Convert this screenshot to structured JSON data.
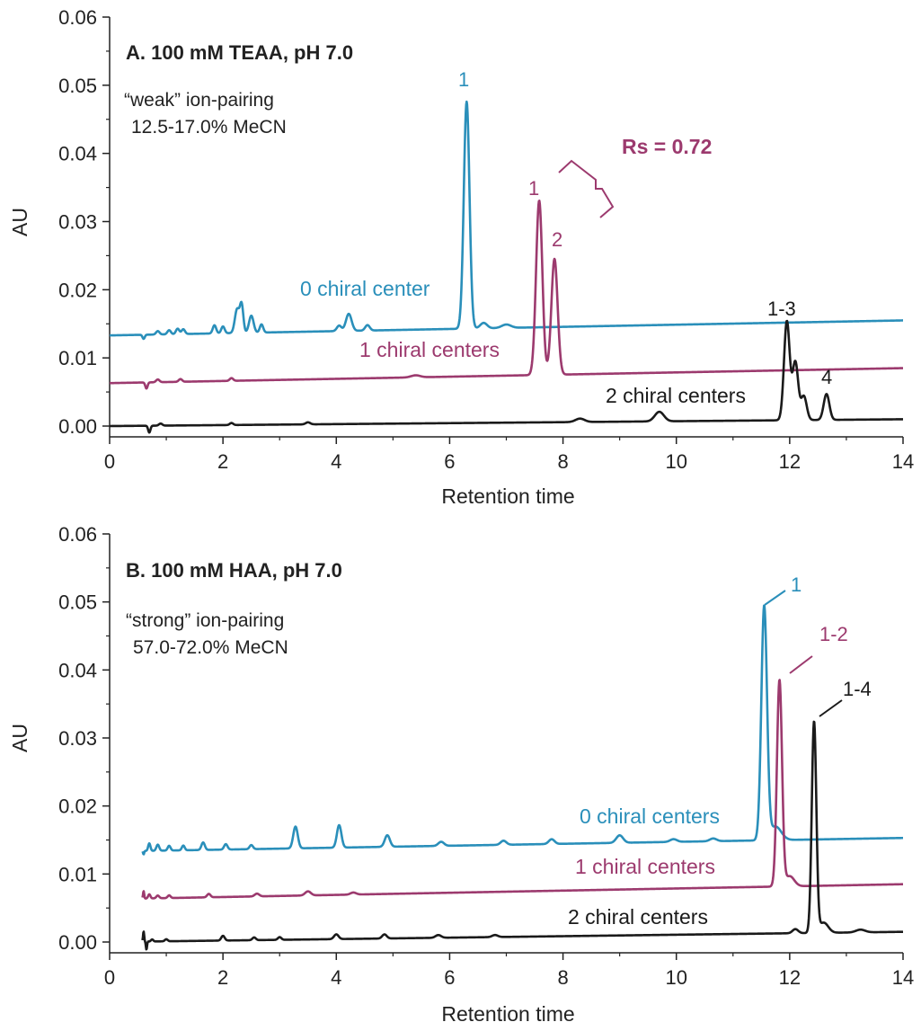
{
  "colors": {
    "blue": "#2a8fba",
    "purple": "#9c3a6e",
    "black": "#1a1a1a"
  },
  "chart_data": [
    {
      "type": "line",
      "title": "A. 100 mM TEAA, pH 7.0",
      "notes": [
        "“weak” ion-pairing",
        "12.5-17.0% MeCN"
      ],
      "xlabel": "Retention time",
      "ylabel": "AU",
      "xlim": [
        0,
        14
      ],
      "ylim": [
        0,
        0.06
      ],
      "xticks": [
        "0",
        "2",
        "4",
        "6",
        "8",
        "10",
        "12",
        "14"
      ],
      "yticks": [
        "0.00",
        "0.01",
        "0.02",
        "0.03",
        "0.04",
        "0.05",
        "0.06"
      ],
      "series": [
        {
          "name": "0 chiral center",
          "color": "blue",
          "baseline": [
            0.0133,
            0.0155
          ],
          "start": 0,
          "peaks": [
            [
              0.6,
              -0.0006,
              0.02
            ],
            [
              0.85,
              0.0005,
              0.03
            ],
            [
              1.05,
              0.0006,
              0.03
            ],
            [
              1.2,
              0.0008,
              0.03
            ],
            [
              1.3,
              0.0007,
              0.03
            ],
            [
              1.85,
              0.0012,
              0.03
            ],
            [
              2.0,
              0.001,
              0.03
            ],
            [
              2.25,
              0.0035,
              0.04
            ],
            [
              2.33,
              0.004,
              0.03
            ],
            [
              2.5,
              0.0025,
              0.04
            ],
            [
              2.68,
              0.0012,
              0.03
            ],
            [
              4.05,
              0.0008,
              0.04
            ],
            [
              4.22,
              0.0025,
              0.05
            ],
            [
              4.55,
              0.0008,
              0.04
            ],
            [
              6.3,
              0.0333,
              0.05
            ],
            [
              6.6,
              0.0008,
              0.06
            ],
            [
              7.0,
              0.0005,
              0.08
            ]
          ]
        },
        {
          "name": "1 chiral centers",
          "color": "purple",
          "baseline": [
            0.0063,
            0.0085
          ],
          "start": 0,
          "peaks": [
            [
              0.65,
              -0.0009,
              0.02
            ],
            [
              0.85,
              0.0004,
              0.03
            ],
            [
              1.25,
              0.0004,
              0.03
            ],
            [
              2.15,
              0.0004,
              0.03
            ],
            [
              5.4,
              0.0003,
              0.08
            ],
            [
              7.58,
              0.0256,
              0.055
            ],
            [
              7.85,
              0.017,
              0.055
            ]
          ]
        },
        {
          "name": "2 chiral centers",
          "color": "black",
          "baseline": [
            0.0,
            0.001
          ],
          "start": 0,
          "peaks": [
            [
              0.7,
              -0.001,
              0.02
            ],
            [
              0.9,
              0.0003,
              0.03
            ],
            [
              2.15,
              0.0003,
              0.03
            ],
            [
              3.5,
              0.0003,
              0.04
            ],
            [
              8.3,
              0.0005,
              0.08
            ],
            [
              9.7,
              0.0014,
              0.08
            ],
            [
              11.95,
              0.0145,
              0.05
            ],
            [
              12.1,
              0.0085,
              0.05
            ],
            [
              12.25,
              0.0035,
              0.05
            ],
            [
              12.65,
              0.0038,
              0.05
            ]
          ]
        }
      ],
      "annotations": {
        "peak_blue_1": "1",
        "peak_purple_1": "1",
        "peak_purple_2": "2",
        "peak_black_1_3": "1-3",
        "peak_black_4": "4",
        "resolution": "Rs = 0.72"
      }
    },
    {
      "type": "line",
      "title": "B. 100 mM HAA, pH 7.0",
      "notes": [
        "“strong” ion-pairing",
        "57.0-72.0% MeCN"
      ],
      "xlabel": "Retention time",
      "ylabel": "AU",
      "xlim": [
        0,
        14
      ],
      "ylim": [
        0,
        0.06
      ],
      "xticks": [
        "0",
        "2",
        "4",
        "6",
        "8",
        "10",
        "12",
        "14"
      ],
      "yticks": [
        "0.00",
        "0.01",
        "0.02",
        "0.03",
        "0.04",
        "0.05",
        "0.06"
      ],
      "series": [
        {
          "name": "0 chiral centers",
          "color": "blue",
          "baseline": [
            0.0133,
            0.0153
          ],
          "start": 0.58,
          "peaks": [
            [
              0.6,
              -0.0005,
              0.01
            ],
            [
              0.7,
              0.0011,
              0.02
            ],
            [
              0.85,
              0.0009,
              0.025
            ],
            [
              1.05,
              0.0007,
              0.025
            ],
            [
              1.3,
              0.0007,
              0.025
            ],
            [
              1.65,
              0.0011,
              0.03
            ],
            [
              2.05,
              0.0008,
              0.03
            ],
            [
              2.5,
              0.0006,
              0.03
            ],
            [
              3.28,
              0.0032,
              0.04
            ],
            [
              4.05,
              0.0033,
              0.04
            ],
            [
              4.9,
              0.0017,
              0.045
            ],
            [
              5.85,
              0.0006,
              0.05
            ],
            [
              6.95,
              0.0006,
              0.05
            ],
            [
              7.8,
              0.0007,
              0.05
            ],
            [
              9.0,
              0.0011,
              0.06
            ],
            [
              9.95,
              0.0004,
              0.06
            ],
            [
              10.65,
              0.0004,
              0.06
            ],
            [
              11.55,
              0.0343,
              0.05
            ],
            [
              11.75,
              0.002,
              0.1
            ]
          ]
        },
        {
          "name": "1 chiral centers",
          "color": "purple",
          "baseline": [
            0.0063,
            0.0085
          ],
          "start": 0.58,
          "peaks": [
            [
              0.6,
              0.0011,
              0.01
            ],
            [
              0.7,
              0.0006,
              0.02
            ],
            [
              0.85,
              0.0004,
              0.025
            ],
            [
              1.05,
              0.0004,
              0.025
            ],
            [
              1.75,
              0.0005,
              0.03
            ],
            [
              2.6,
              0.0004,
              0.04
            ],
            [
              3.5,
              0.0006,
              0.05
            ],
            [
              4.3,
              0.0003,
              0.05
            ],
            [
              11.82,
              0.0303,
              0.045
            ],
            [
              12.0,
              0.0015,
              0.08
            ]
          ]
        },
        {
          "name": "2 chiral centers",
          "color": "black",
          "baseline": [
            0.0,
            0.0015
          ],
          "start": 0.58,
          "peaks": [
            [
              0.6,
              0.0015,
              0.01
            ],
            [
              0.65,
              -0.0012,
              0.01
            ],
            [
              0.75,
              0.0003,
              0.02
            ],
            [
              1.0,
              0.0003,
              0.025
            ],
            [
              2.0,
              0.0007,
              0.03
            ],
            [
              2.55,
              0.0004,
              0.03
            ],
            [
              3.0,
              0.0004,
              0.03
            ],
            [
              4.0,
              0.0007,
              0.04
            ],
            [
              4.85,
              0.0006,
              0.04
            ],
            [
              5.8,
              0.0004,
              0.05
            ],
            [
              6.8,
              0.0003,
              0.05
            ],
            [
              12.1,
              0.0006,
              0.05
            ],
            [
              12.43,
              0.031,
              0.04
            ],
            [
              12.6,
              0.0015,
              0.08
            ],
            [
              13.25,
              0.0004,
              0.08
            ]
          ]
        }
      ],
      "annotations": {
        "peak_blue_1": "1",
        "peak_purple_1_2": "1-2",
        "peak_black_1_4": "1-4"
      }
    }
  ]
}
